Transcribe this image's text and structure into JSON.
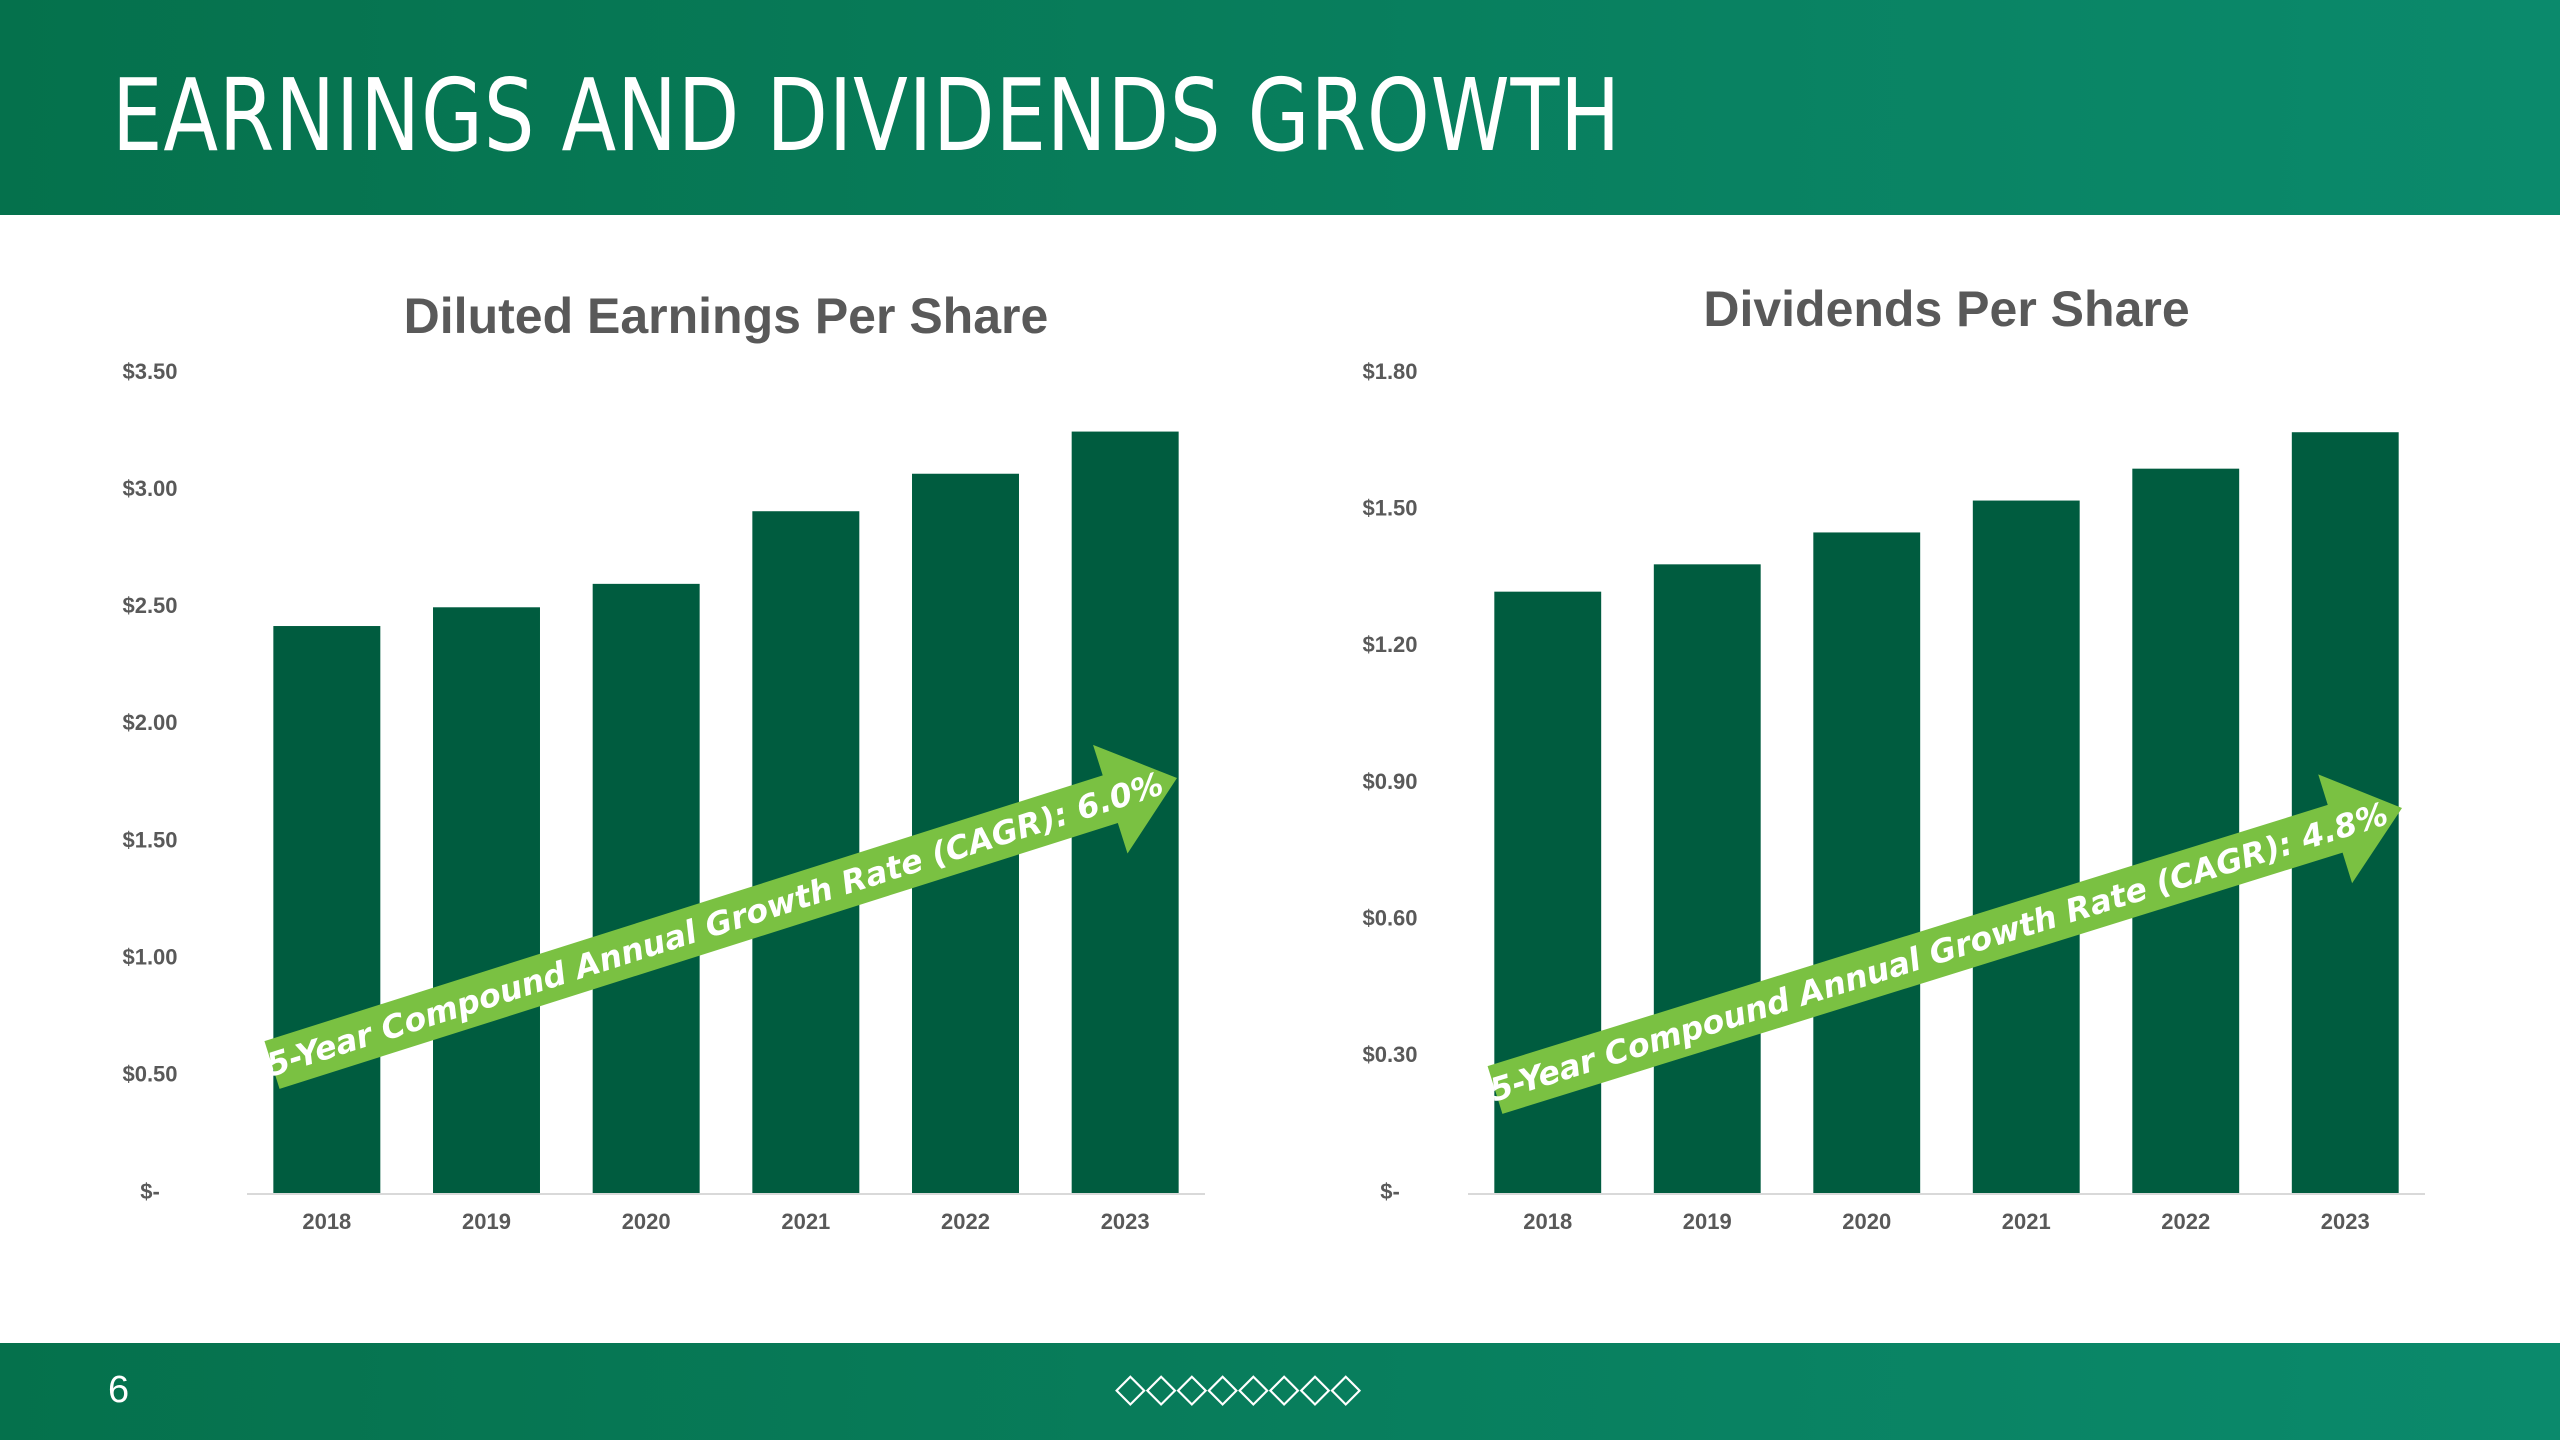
{
  "header": {
    "title": "EARNINGS AND DIVIDENDS GROWTH"
  },
  "footer": {
    "page_number": "6",
    "decoration": "◇◇◇◇◇◇◇◇"
  },
  "colors": {
    "bar": "#005c3f",
    "arrow": "#7ac142",
    "header": "#05714c",
    "title_text": "#595959"
  },
  "chart_data": [
    {
      "type": "bar",
      "title": "Diluted Earnings Per Share",
      "categories": [
        "2018",
        "2019",
        "2020",
        "2021",
        "2022",
        "2023"
      ],
      "values": [
        2.42,
        2.5,
        2.6,
        2.91,
        3.07,
        3.25
      ],
      "ylim": [
        0,
        3.5
      ],
      "yticks": [
        0,
        0.5,
        1.0,
        1.5,
        2.0,
        2.5,
        3.0,
        3.5
      ],
      "ytick_labels": [
        "$-",
        "$0.50",
        "$1.00",
        "$1.50",
        "$2.00",
        "$2.50",
        "$3.00",
        "$3.50"
      ],
      "grid": false,
      "annotation": "5-Year Compound Annual Growth Rate (CAGR): 6.0%"
    },
    {
      "type": "bar",
      "title": "Dividends Per Share",
      "categories": [
        "2018",
        "2019",
        "2020",
        "2021",
        "2022",
        "2023"
      ],
      "values": [
        1.32,
        1.38,
        1.45,
        1.52,
        1.59,
        1.67
      ],
      "ylim": [
        0,
        1.8
      ],
      "yticks": [
        0,
        0.3,
        0.6,
        0.9,
        1.2,
        1.5,
        1.8
      ],
      "ytick_labels": [
        "$-",
        "$0.30",
        "$0.60",
        "$0.90",
        "$1.20",
        "$1.50",
        "$1.80"
      ],
      "grid": false,
      "annotation": "5-Year Compound Annual Growth Rate (CAGR): 4.8%"
    }
  ]
}
